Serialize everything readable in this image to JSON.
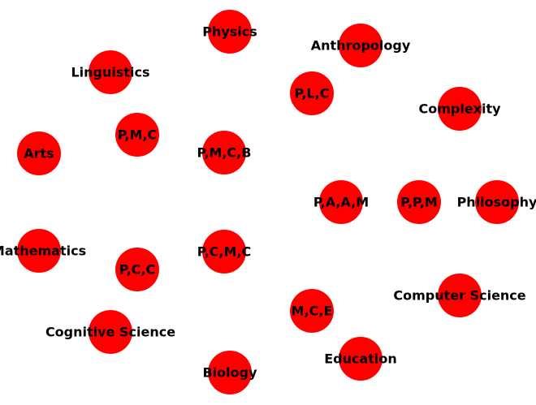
{
  "graph": {
    "node_color": "#ff0000",
    "label_color": "#000000",
    "nodes": [
      {
        "id": "physics",
        "label": "Physics"
      },
      {
        "id": "anthropology",
        "label": "Anthropology"
      },
      {
        "id": "linguistics",
        "label": "Linguistics"
      },
      {
        "id": "plc",
        "label": "P,L,C"
      },
      {
        "id": "complexity",
        "label": "Complexity"
      },
      {
        "id": "pmc",
        "label": "P,M,C"
      },
      {
        "id": "arts",
        "label": "Arts"
      },
      {
        "id": "pmcb",
        "label": "P,M,C,B"
      },
      {
        "id": "paam",
        "label": "P,A,A,M"
      },
      {
        "id": "ppm",
        "label": "P,P,M"
      },
      {
        "id": "philosophy",
        "label": "Philosophy"
      },
      {
        "id": "mathematics",
        "label": "Mathematics"
      },
      {
        "id": "pcmc",
        "label": "P,C,M,C"
      },
      {
        "id": "pcc",
        "label": "P,C,C"
      },
      {
        "id": "computer-science",
        "label": "Computer Science"
      },
      {
        "id": "mce",
        "label": "M,C,E"
      },
      {
        "id": "cognitive-science",
        "label": "Cognitive Science"
      },
      {
        "id": "education",
        "label": "Education"
      },
      {
        "id": "biology",
        "label": "Biology"
      }
    ]
  }
}
